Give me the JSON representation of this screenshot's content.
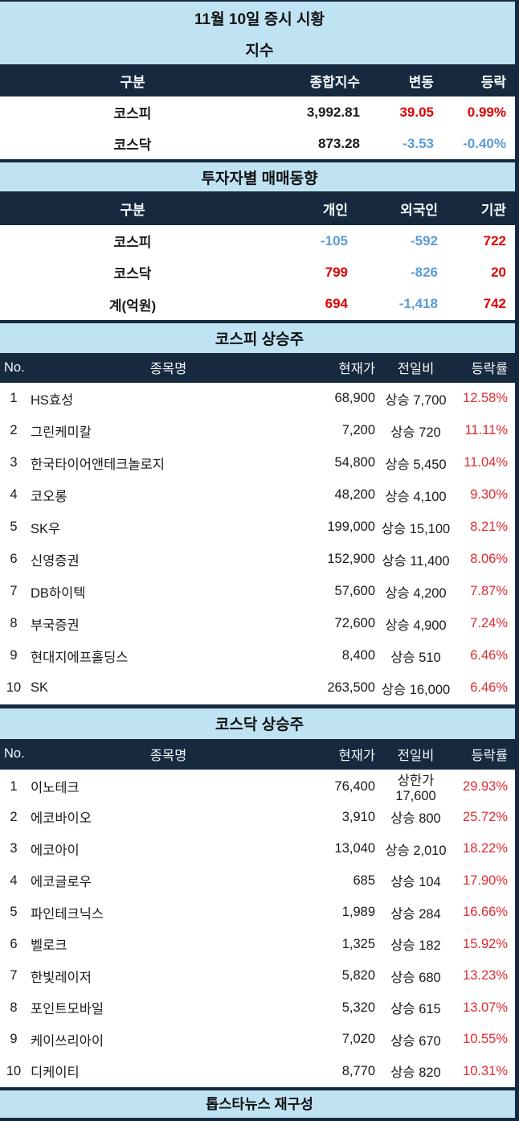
{
  "page": {
    "title": "11월 10일 증시 시황",
    "footer": "톱스타뉴스 재구성"
  },
  "colors": {
    "navy": "#16293e",
    "light_blue": "#bfe3f2",
    "red": "#e00000",
    "pct_red": "#e02a30",
    "neg_blue": "#5b9bd5"
  },
  "chart_data": [
    {
      "type": "table",
      "title": "지수",
      "columns": [
        "구분",
        "종합지수",
        "변동",
        "등락"
      ],
      "rows": [
        [
          "코스피",
          "3,992.81",
          "39.05",
          "0.99%"
        ],
        [
          "코스닥",
          "873.28",
          "-3.53",
          "-0.40%"
        ]
      ]
    },
    {
      "type": "table",
      "title": "투자자별 매매동향",
      "unit_note": "계(억원)",
      "columns": [
        "구분",
        "개인",
        "외국인",
        "기관"
      ],
      "rows": [
        [
          "코스피",
          "-105",
          "-592",
          "722"
        ],
        [
          "코스닥",
          "799",
          "-826",
          "20"
        ],
        [
          "계(억원)",
          "694",
          "-1,418",
          "742"
        ]
      ]
    },
    {
      "type": "table",
      "title": "코스피 상승주",
      "columns": [
        "No.",
        "종목명",
        "현재가",
        "전일비",
        "등락률"
      ],
      "rows": [
        [
          "1",
          "HS효성",
          "68,900",
          "상승 7,700",
          "12.58%"
        ],
        [
          "2",
          "그린케미칼",
          "7,200",
          "상승 720",
          "11.11%"
        ],
        [
          "3",
          "한국타이어앤테크놀로지",
          "54,800",
          "상승 5,450",
          "11.04%"
        ],
        [
          "4",
          "코오롱",
          "48,200",
          "상승 4,100",
          "9.30%"
        ],
        [
          "5",
          "SK우",
          "199,000",
          "상승 15,100",
          "8.21%"
        ],
        [
          "6",
          "신영증권",
          "152,900",
          "상승 11,400",
          "8.06%"
        ],
        [
          "7",
          "DB하이텍",
          "57,600",
          "상승 4,200",
          "7.87%"
        ],
        [
          "8",
          "부국증권",
          "72,600",
          "상승 4,900",
          "7.24%"
        ],
        [
          "9",
          "현대지에프홀딩스",
          "8,400",
          "상승 510",
          "6.46%"
        ],
        [
          "10",
          "SK",
          "263,500",
          "상승 16,000",
          "6.46%"
        ]
      ]
    },
    {
      "type": "table",
      "title": "코스닥 상승주",
      "columns": [
        "No.",
        "종목명",
        "현재가",
        "전일비",
        "등락률"
      ],
      "rows": [
        [
          "1",
          "이노테크",
          "76,400",
          "상한가 17,600",
          "29.93%"
        ],
        [
          "2",
          "에코바이오",
          "3,910",
          "상승 800",
          "25.72%"
        ],
        [
          "3",
          "에코아이",
          "13,040",
          "상승 2,010",
          "18.22%"
        ],
        [
          "4",
          "에코글로우",
          "685",
          "상승 104",
          "17.90%"
        ],
        [
          "5",
          "파인테크닉스",
          "1,989",
          "상승 284",
          "16.66%"
        ],
        [
          "6",
          "벨로크",
          "1,325",
          "상승 182",
          "15.92%"
        ],
        [
          "7",
          "한빛레이저",
          "5,820",
          "상승 680",
          "13.23%"
        ],
        [
          "8",
          "포인트모바일",
          "5,320",
          "상승 615",
          "13.07%"
        ],
        [
          "9",
          "케이쓰리아이",
          "7,020",
          "상승 670",
          "10.55%"
        ],
        [
          "10",
          "디케이티",
          "8,770",
          "상승 820",
          "10.31%"
        ]
      ]
    }
  ]
}
